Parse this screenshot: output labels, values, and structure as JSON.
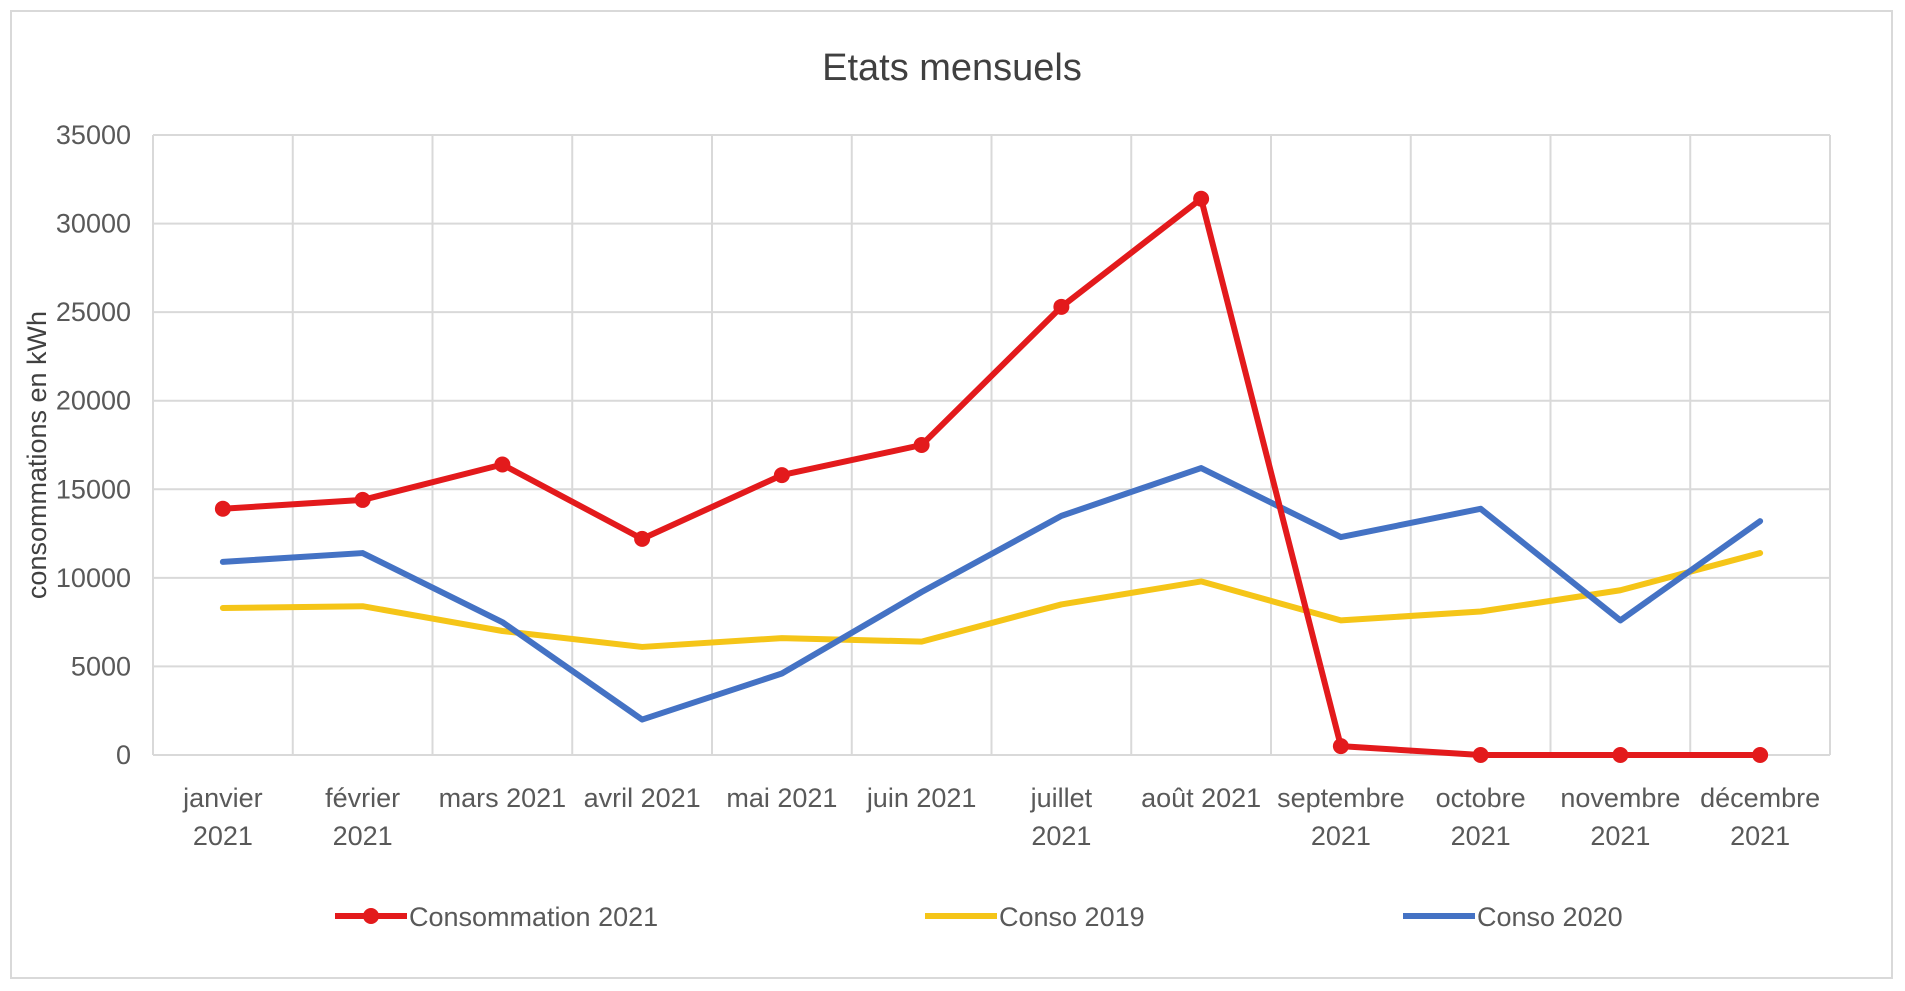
{
  "chart_data": {
    "type": "line",
    "title": "Etats mensuels",
    "xlabel": "",
    "ylabel": "consommations en kWh",
    "ylim": [
      0,
      35000
    ],
    "yticks": [
      "0",
      "5000",
      "10000",
      "15000",
      "20000",
      "25000",
      "30000",
      "35000"
    ],
    "grid": true,
    "legend": "bottom",
    "categories": [
      [
        "janvier",
        "2021"
      ],
      [
        "février",
        "2021"
      ],
      [
        "mars 2021"
      ],
      [
        "avril 2021"
      ],
      [
        "mai 2021"
      ],
      [
        "juin 2021"
      ],
      [
        "juillet",
        "2021"
      ],
      [
        "août 2021"
      ],
      [
        "septembre",
        "2021"
      ],
      [
        "octobre",
        "2021"
      ],
      [
        "novembre",
        "2021"
      ],
      [
        "décembre",
        "2021"
      ]
    ],
    "series": [
      {
        "name": "Consommation 2021",
        "color": "#e31a1c",
        "markers": true,
        "values": [
          13900,
          14400,
          16400,
          12200,
          15800,
          17500,
          25300,
          31400,
          500,
          0,
          0,
          0
        ]
      },
      {
        "name": "Conso 2019",
        "color": "#f5c518",
        "markers": false,
        "values": [
          8300,
          8400,
          7000,
          6100,
          6600,
          6400,
          8500,
          9800,
          7600,
          8100,
          9300,
          11400
        ]
      },
      {
        "name": "Conso 2020",
        "color": "#4472c4",
        "markers": false,
        "values": [
          10900,
          11400,
          7500,
          2000,
          4600,
          9200,
          13500,
          16200,
          12300,
          13900,
          7600,
          13200
        ]
      }
    ]
  }
}
